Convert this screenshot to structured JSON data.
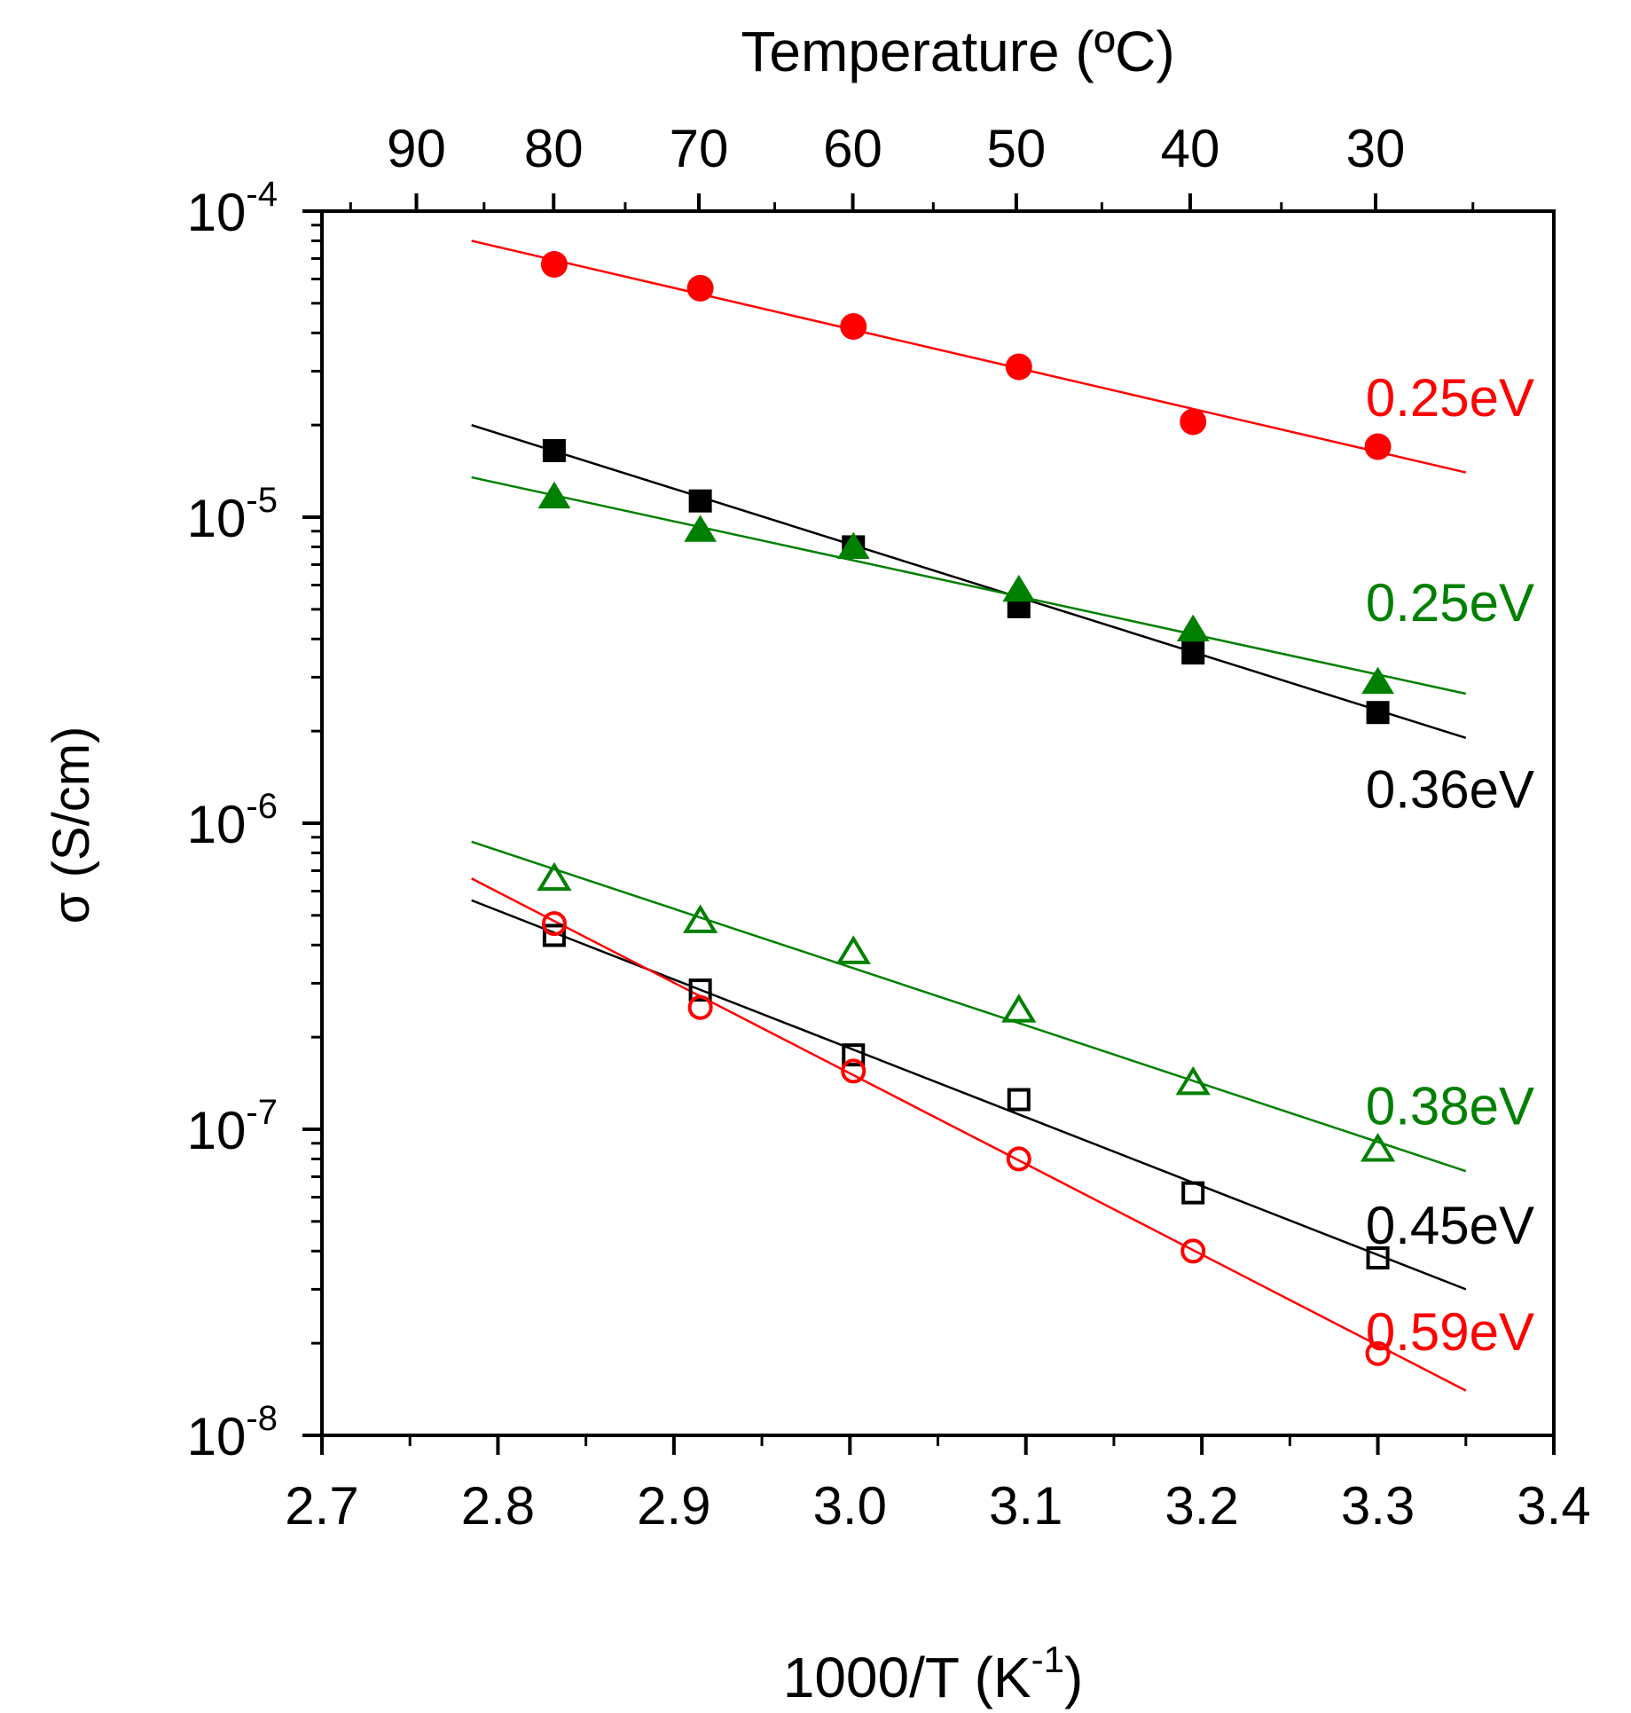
{
  "chart_data": {
    "type": "scatter",
    "title": "",
    "xlabel": "1000/T (K",
    "xlabel_sup": "-1",
    "xlabel_close": ")",
    "ylabel": "σ (S/cm)",
    "top_axis_label": "Temperature (ºC)",
    "xlim": [
      2.7,
      3.4
    ],
    "ylim": [
      1e-08,
      0.0001
    ],
    "yscale": "log",
    "x_ticks": [
      {
        "value": 2.7,
        "label": "2.7"
      },
      {
        "value": 2.8,
        "label": "2.8"
      },
      {
        "value": 2.9,
        "label": "2.9"
      },
      {
        "value": 3.0,
        "label": "3.0"
      },
      {
        "value": 3.1,
        "label": "3.1"
      },
      {
        "value": 3.2,
        "label": "3.2"
      },
      {
        "value": 3.3,
        "label": "3.3"
      },
      {
        "value": 3.4,
        "label": "3.4"
      }
    ],
    "y_ticks": [
      {
        "value": 1e-08,
        "base": "10",
        "exp": "-8"
      },
      {
        "value": 1e-07,
        "base": "10",
        "exp": "-7"
      },
      {
        "value": 1e-06,
        "base": "10",
        "exp": "-6"
      },
      {
        "value": 1e-05,
        "base": "10",
        "exp": "-5"
      },
      {
        "value": 0.0001,
        "base": "10",
        "exp": "-4"
      }
    ],
    "top_ticks": [
      {
        "celsius": 90,
        "label": "90"
      },
      {
        "celsius": 80,
        "label": "80"
      },
      {
        "celsius": 70,
        "label": "70"
      },
      {
        "celsius": 60,
        "label": "60"
      },
      {
        "celsius": 50,
        "label": "50"
      },
      {
        "celsius": 40,
        "label": "40"
      },
      {
        "celsius": 30,
        "label": "30"
      }
    ],
    "series": [
      {
        "name": "filled-circle-red",
        "color": "#ff0000",
        "marker": "circle",
        "filled": true,
        "x": [
          2.832,
          2.915,
          3.002,
          3.096,
          3.195,
          3.3
        ],
        "y": [
          6.7e-05,
          5.6e-05,
          4.2e-05,
          3.1e-05,
          2.05e-05,
          1.7e-05
        ],
        "fit": {
          "x": [
            2.785,
            3.35
          ],
          "y": [
            8e-05,
            1.4e-05
          ]
        },
        "annotation": "0.25eV"
      },
      {
        "name": "filled-square-black",
        "color": "#000000",
        "marker": "square",
        "filled": true,
        "x": [
          2.832,
          2.915,
          3.002,
          3.096,
          3.195,
          3.3
        ],
        "y": [
          1.65e-05,
          1.13e-05,
          8e-06,
          5.1e-06,
          3.6e-06,
          2.3e-06
        ],
        "fit": {
          "x": [
            2.785,
            3.35
          ],
          "y": [
            2e-05,
            1.9e-06
          ]
        },
        "annotation": "0.36eV"
      },
      {
        "name": "filled-triangle-green",
        "color": "#008000",
        "marker": "triangle",
        "filled": true,
        "x": [
          2.832,
          2.915,
          3.002,
          3.096,
          3.195,
          3.3
        ],
        "y": [
          1.17e-05,
          9.1e-06,
          8e-06,
          5.8e-06,
          4.3e-06,
          2.9e-06
        ],
        "fit": {
          "x": [
            2.785,
            3.35
          ],
          "y": [
            1.35e-05,
            2.65e-06
          ]
        },
        "annotation": "0.25eV"
      },
      {
        "name": "open-triangle-green",
        "color": "#008000",
        "marker": "triangle",
        "filled": false,
        "x": [
          2.832,
          2.915,
          3.002,
          3.096,
          3.195,
          3.3
        ],
        "y": [
          6.6e-07,
          4.8e-07,
          3.8e-07,
          2.45e-07,
          1.42e-07,
          8.6e-08
        ],
        "fit": {
          "x": [
            2.785,
            3.35
          ],
          "y": [
            8.7e-07,
            7.3e-08
          ]
        },
        "annotation": "0.38eV"
      },
      {
        "name": "open-square-black",
        "color": "#000000",
        "marker": "square",
        "filled": false,
        "x": [
          2.832,
          2.915,
          3.002,
          3.096,
          3.195,
          3.3
        ],
        "y": [
          4.3e-07,
          2.85e-07,
          1.75e-07,
          1.25e-07,
          6.2e-08,
          3.8e-08
        ],
        "fit": {
          "x": [
            2.785,
            3.35
          ],
          "y": [
            5.6e-07,
            3e-08
          ]
        },
        "annotation": "0.45eV"
      },
      {
        "name": "open-circle-red",
        "color": "#ff0000",
        "marker": "circle",
        "filled": false,
        "x": [
          2.832,
          2.915,
          3.002,
          3.096,
          3.195,
          3.3
        ],
        "y": [
          4.7e-07,
          2.5e-07,
          1.55e-07,
          8e-08,
          4e-08,
          1.85e-08
        ],
        "fit": {
          "x": [
            2.785,
            3.35
          ],
          "y": [
            6.6e-07,
            1.4e-08
          ]
        },
        "annotation": "0.59eV"
      }
    ]
  }
}
